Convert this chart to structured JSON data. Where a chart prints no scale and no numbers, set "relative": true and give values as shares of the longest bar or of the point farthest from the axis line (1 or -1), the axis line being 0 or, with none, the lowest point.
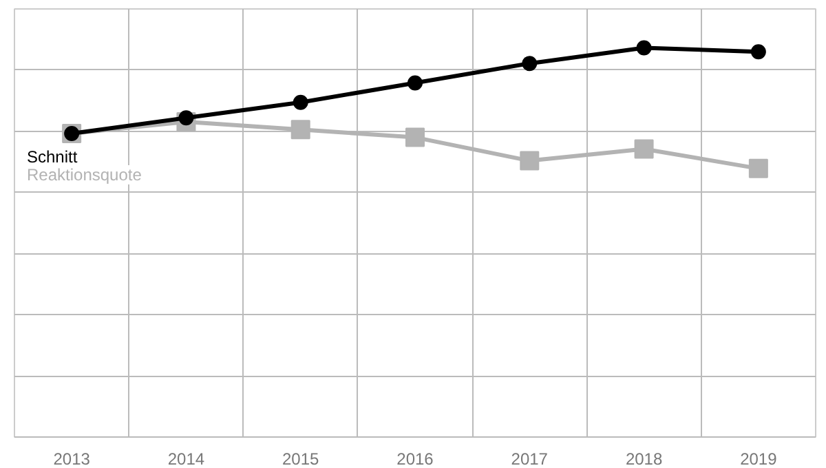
{
  "chart_data": {
    "type": "line",
    "relative": true,
    "categories": [
      "2013",
      "2014",
      "2015",
      "2016",
      "2017",
      "2018",
      "2019"
    ],
    "series": [
      {
        "name": "Schnitt",
        "color": "#000000",
        "marker": "circle",
        "values": [
          0.78,
          0.82,
          0.86,
          0.91,
          0.96,
          1,
          0.99
        ]
      },
      {
        "name": "Reaktionsquote",
        "color": "#b3b3b3",
        "marker": "square",
        "values": [
          0.78,
          0.81,
          0.79,
          0.77,
          0.71,
          0.74,
          0.69
        ]
      }
    ],
    "grid": true,
    "legend": "left"
  }
}
